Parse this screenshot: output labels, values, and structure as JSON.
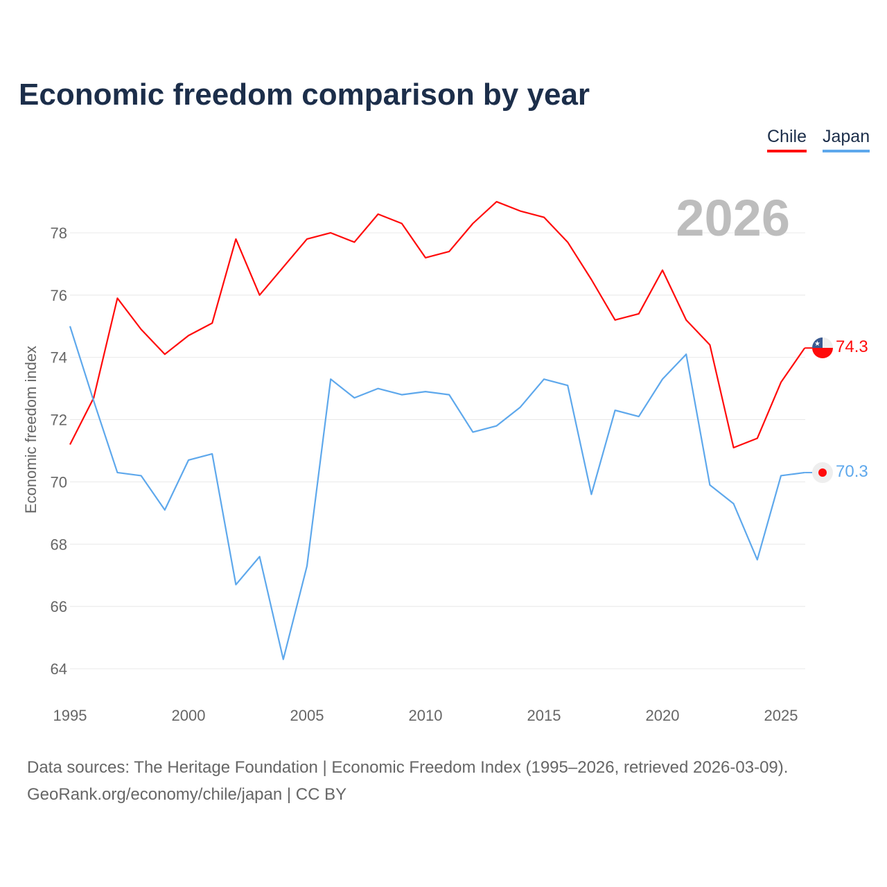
{
  "chart_data": {
    "type": "line",
    "title": "Economic freedom comparison by year",
    "xlabel": "",
    "ylabel": "Economic freedom index",
    "year_watermark": "2026",
    "xlim": [
      1995,
      2026
    ],
    "ylim": [
      63,
      79.5
    ],
    "x_ticks": [
      1995,
      2000,
      2005,
      2010,
      2015,
      2020,
      2025
    ],
    "y_ticks": [
      64,
      66,
      68,
      70,
      72,
      74,
      76,
      78
    ],
    "grid": true,
    "legend_position": "top-right",
    "x": [
      1995,
      1996,
      1997,
      1998,
      1999,
      2000,
      2001,
      2002,
      2003,
      2004,
      2005,
      2006,
      2007,
      2008,
      2009,
      2010,
      2011,
      2012,
      2013,
      2014,
      2015,
      2016,
      2017,
      2018,
      2019,
      2020,
      2021,
      2022,
      2023,
      2024,
      2025,
      2026
    ],
    "series": [
      {
        "name": "Chile",
        "color": "#ff0a0a",
        "end_label": "74.3",
        "values": [
          71.2,
          72.7,
          75.9,
          74.9,
          74.1,
          74.7,
          75.1,
          77.8,
          76.0,
          76.9,
          77.8,
          78.0,
          77.7,
          78.6,
          78.3,
          77.2,
          77.4,
          78.3,
          79.0,
          78.7,
          78.5,
          77.7,
          76.5,
          75.2,
          75.4,
          76.8,
          75.2,
          74.4,
          71.1,
          71.4,
          73.2,
          74.3
        ]
      },
      {
        "name": "Japan",
        "color": "#5ea8ec",
        "end_label": "70.3",
        "values": [
          75.0,
          72.6,
          70.3,
          70.2,
          69.1,
          70.7,
          70.9,
          66.7,
          67.6,
          64.3,
          67.3,
          73.3,
          72.7,
          73.0,
          72.8,
          72.9,
          72.8,
          71.6,
          71.8,
          72.4,
          73.3,
          73.1,
          69.6,
          72.3,
          72.1,
          73.3,
          74.1,
          69.9,
          69.3,
          67.5,
          70.2,
          70.3
        ]
      }
    ]
  },
  "source": {
    "line1": "Data sources: The Heritage Foundation | Economic Freedom Index (1995–2026, retrieved 2026-03-09).",
    "line2": "GeoRank.org/economy/chile/japan | CC BY"
  }
}
